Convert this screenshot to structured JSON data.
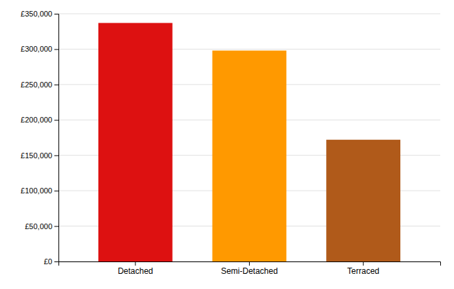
{
  "chart_data": {
    "type": "bar",
    "categories": [
      "Detached",
      "Semi-Detached",
      "Terraced"
    ],
    "values": [
      337000,
      298000,
      172000
    ],
    "colors": [
      "#dd1111",
      "#ff9900",
      "#b05a1a"
    ],
    "ylim": [
      0,
      350000
    ],
    "yticks": [
      {
        "value": 0,
        "label": "£0"
      },
      {
        "value": 50000,
        "label": "£50,000"
      },
      {
        "value": 100000,
        "label": "£100,000"
      },
      {
        "value": 150000,
        "label": "£150,000"
      },
      {
        "value": 200000,
        "label": "£200,000"
      },
      {
        "value": 250000,
        "label": "£250,000"
      },
      {
        "value": 300000,
        "label": "£300,000"
      },
      {
        "value": 350000,
        "label": "£350,000"
      }
    ],
    "grid": true
  }
}
